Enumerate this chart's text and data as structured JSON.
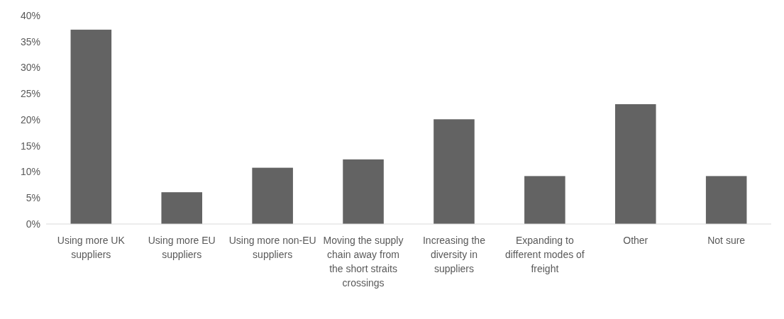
{
  "chart_data": {
    "type": "bar",
    "categories": [
      "Using more UK suppliers",
      "Using more EU suppliers",
      "Using more non-EU suppliers",
      "Moving the supply chain away from the short straits crossings",
      "Increasing the diversity in suppliers",
      "Expanding to different modes of freight",
      "Other",
      "Not sure"
    ],
    "values": [
      37.3,
      6.1,
      10.8,
      12.4,
      20.1,
      9.2,
      23.0,
      9.2
    ],
    "color": "#636363",
    "ylim": [
      0,
      40
    ],
    "yticks": [
      {
        "value": 0,
        "label": "0%"
      },
      {
        "value": 5,
        "label": "5%"
      },
      {
        "value": 10,
        "label": "10%"
      },
      {
        "value": 15,
        "label": "15%"
      },
      {
        "value": 20,
        "label": "20%"
      },
      {
        "value": 25,
        "label": "25%"
      },
      {
        "value": 30,
        "label": "30%"
      },
      {
        "value": 35,
        "label": "35%"
      },
      {
        "value": 40,
        "label": "40%"
      }
    ],
    "grid": false
  }
}
